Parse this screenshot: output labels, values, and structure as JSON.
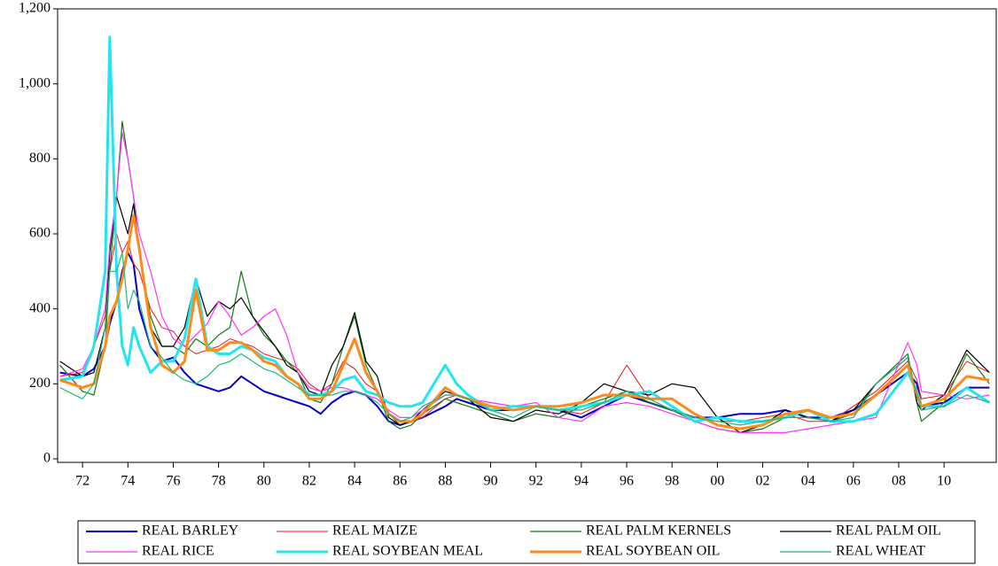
{
  "chart_data": {
    "type": "line",
    "x": [
      1971,
      1972,
      1972.5,
      1973,
      1973.2,
      1973.5,
      1973.75,
      1974,
      1974.25,
      1974.5,
      1975,
      1975.5,
      1976,
      1976.5,
      1977,
      1977.5,
      1978,
      1978.5,
      1979,
      1979.5,
      1980,
      1980.5,
      1981,
      1981.5,
      1982,
      1982.5,
      1983,
      1983.5,
      1984,
      1984.5,
      1985,
      1985.5,
      1986,
      1986.5,
      1987,
      1988,
      1988.5,
      1989,
      1990,
      1991,
      1992,
      1993,
      1994,
      1995,
      1996,
      1997,
      1998,
      1999,
      2000,
      2001,
      2002,
      2003,
      2004,
      2005,
      2006,
      2007,
      2008.4,
      2008.8,
      2009,
      2010,
      2011,
      2012
    ],
    "xlim": [
      1970.9,
      2012.3
    ],
    "xticks": [
      {
        "value": 1972,
        "label": "72"
      },
      {
        "value": 1974,
        "label": "74"
      },
      {
        "value": 1976,
        "label": "76"
      },
      {
        "value": 1978,
        "label": "78"
      },
      {
        "value": 1980,
        "label": "80"
      },
      {
        "value": 1982,
        "label": "82"
      },
      {
        "value": 1984,
        "label": "84"
      },
      {
        "value": 1986,
        "label": "86"
      },
      {
        "value": 1988,
        "label": "88"
      },
      {
        "value": 1990,
        "label": "90"
      },
      {
        "value": 1992,
        "label": "92"
      },
      {
        "value": 1994,
        "label": "94"
      },
      {
        "value": 1996,
        "label": "96"
      },
      {
        "value": 1998,
        "label": "98"
      },
      {
        "value": 2000,
        "label": "00"
      },
      {
        "value": 2002,
        "label": "02"
      },
      {
        "value": 2004,
        "label": "04"
      },
      {
        "value": 2006,
        "label": "06"
      },
      {
        "value": 2008,
        "label": "08"
      },
      {
        "value": 2010,
        "label": "10"
      }
    ],
    "ylim": [
      0,
      1200
    ],
    "yticks": [
      0,
      200,
      400,
      600,
      800,
      {
        "value": 1000,
        "label": "1,000"
      },
      {
        "value": 1200,
        "label": "1,200"
      }
    ],
    "series": [
      {
        "name": "REAL BARLEY",
        "color": "#0000cc",
        "values": [
          230,
          220,
          240,
          300,
          360,
          420,
          500,
          550,
          520,
          400,
          300,
          260,
          270,
          230,
          200,
          190,
          180,
          190,
          220,
          200,
          180,
          170,
          160,
          150,
          140,
          120,
          150,
          170,
          180,
          170,
          140,
          100,
          90,
          100,
          110,
          140,
          160,
          150,
          130,
          130,
          140,
          130,
          110,
          140,
          170,
          150,
          130,
          110,
          110,
          120,
          120,
          130,
          110,
          110,
          130,
          170,
          230,
          200,
          140,
          150,
          190,
          190
        ]
      },
      {
        "name": "REAL MAIZE",
        "color": "#e41a1c",
        "values": [
          220,
          230,
          300,
          380,
          500,
          600,
          550,
          580,
          520,
          500,
          400,
          350,
          340,
          300,
          280,
          290,
          300,
          320,
          310,
          300,
          280,
          270,
          260,
          240,
          200,
          180,
          200,
          260,
          240,
          200,
          180,
          120,
          90,
          100,
          110,
          160,
          170,
          160,
          150,
          140,
          140,
          130,
          120,
          150,
          250,
          160,
          130,
          110,
          100,
          100,
          110,
          120,
          100,
          100,
          140,
          180,
          260,
          210,
          160,
          170,
          260,
          230
        ]
      },
      {
        "name": "REAL PALM KERNELS",
        "color": "#117a11",
        "values": [
          250,
          180,
          170,
          300,
          500,
          700,
          900,
          800,
          700,
          550,
          380,
          300,
          300,
          280,
          320,
          300,
          330,
          350,
          500,
          380,
          330,
          300,
          260,
          230,
          160,
          150,
          200,
          300,
          380,
          250,
          180,
          100,
          80,
          90,
          120,
          160,
          150,
          140,
          120,
          100,
          120,
          110,
          140,
          160,
          180,
          150,
          130,
          100,
          80,
          70,
          80,
          110,
          110,
          100,
          120,
          200,
          280,
          150,
          100,
          150,
          280,
          200
        ]
      },
      {
        "name": "REAL PALM OIL",
        "color": "#000000",
        "values": [
          260,
          220,
          230,
          350,
          550,
          700,
          650,
          600,
          680,
          550,
          350,
          300,
          300,
          350,
          480,
          380,
          420,
          400,
          430,
          380,
          340,
          300,
          250,
          230,
          180,
          170,
          250,
          300,
          390,
          260,
          220,
          110,
          90,
          100,
          130,
          180,
          170,
          160,
          110,
          100,
          130,
          120,
          150,
          200,
          180,
          170,
          200,
          190,
          110,
          70,
          90,
          130,
          110,
          100,
          130,
          200,
          270,
          150,
          130,
          170,
          290,
          230
        ]
      },
      {
        "name": "REAL RICE",
        "color": "#ff33ff",
        "values": [
          220,
          240,
          300,
          400,
          570,
          700,
          870,
          800,
          700,
          600,
          500,
          380,
          320,
          300,
          330,
          360,
          420,
          380,
          330,
          350,
          380,
          400,
          330,
          230,
          190,
          180,
          190,
          190,
          180,
          170,
          160,
          130,
          110,
          110,
          130,
          170,
          170,
          160,
          150,
          140,
          150,
          110,
          100,
          140,
          150,
          140,
          120,
          100,
          80,
          70,
          70,
          70,
          80,
          90,
          100,
          110,
          310,
          250,
          180,
          170,
          160,
          170
        ]
      },
      {
        "name": "REAL SOYBEAN MEAL",
        "color": "#22e5f0",
        "values": [
          210,
          220,
          300,
          500,
          1125,
          500,
          300,
          250,
          350,
          300,
          230,
          260,
          260,
          320,
          480,
          300,
          280,
          280,
          300,
          290,
          270,
          260,
          220,
          200,
          170,
          170,
          180,
          210,
          220,
          180,
          170,
          150,
          140,
          140,
          150,
          250,
          200,
          170,
          130,
          140,
          140,
          130,
          140,
          150,
          170,
          180,
          140,
          100,
          110,
          100,
          100,
          110,
          130,
          100,
          100,
          120,
          230,
          180,
          140,
          140,
          190,
          150
        ]
      },
      {
        "name": "REAL SOYBEAN OIL",
        "color": "#ff8a1a",
        "values": [
          210,
          190,
          200,
          300,
          380,
          420,
          480,
          560,
          650,
          560,
          350,
          250,
          230,
          260,
          450,
          290,
          290,
          310,
          310,
          290,
          260,
          250,
          220,
          200,
          160,
          160,
          180,
          250,
          320,
          230,
          180,
          120,
          100,
          100,
          120,
          190,
          170,
          160,
          140,
          130,
          140,
          140,
          150,
          170,
          170,
          160,
          160,
          120,
          90,
          80,
          90,
          120,
          130,
          110,
          120,
          170,
          250,
          170,
          140,
          160,
          220,
          210
        ]
      },
      {
        "name": "REAL WHEAT",
        "color": "#1fb87a",
        "values": [
          190,
          160,
          200,
          350,
          500,
          500,
          550,
          400,
          450,
          420,
          300,
          270,
          230,
          210,
          200,
          220,
          250,
          260,
          280,
          260,
          240,
          230,
          210,
          190,
          170,
          170,
          170,
          180,
          180,
          170,
          150,
          120,
          100,
          110,
          140,
          170,
          170,
          160,
          130,
          110,
          140,
          130,
          130,
          150,
          180,
          160,
          130,
          110,
          100,
          90,
          100,
          110,
          110,
          100,
          110,
          200,
          270,
          170,
          130,
          140,
          170,
          150
        ]
      }
    ]
  }
}
